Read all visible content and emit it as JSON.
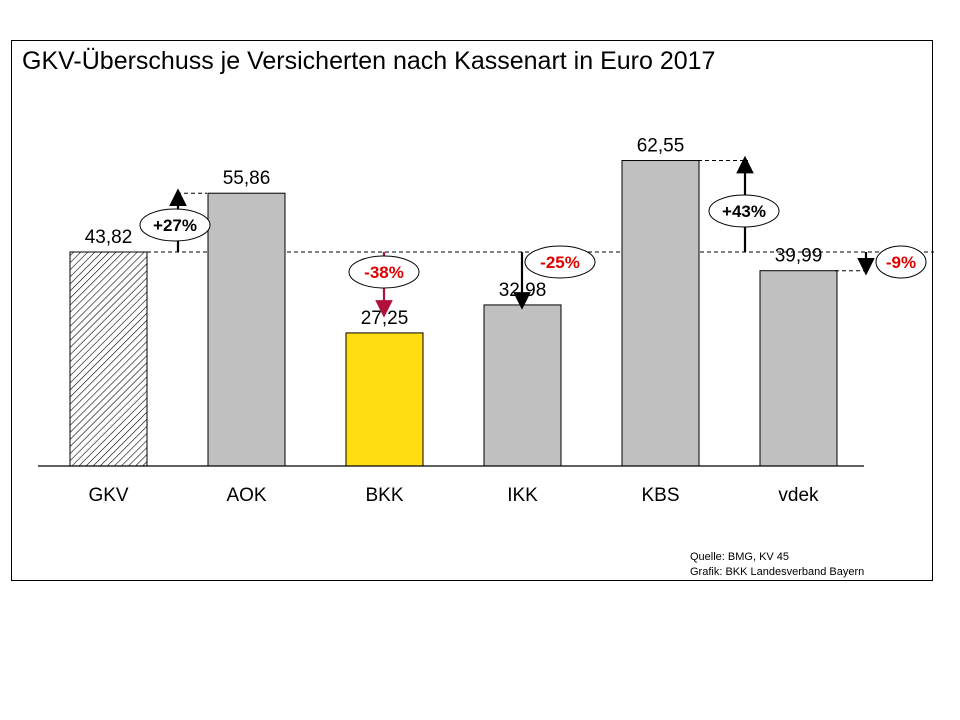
{
  "chart_data": {
    "type": "bar",
    "title": "GKV-Überschuss je Versicherten nach Kassenart in Euro 2017",
    "categories": [
      "GKV",
      "AOK",
      "BKK",
      "IKK",
      "KBS",
      "vdek"
    ],
    "values": [
      43.82,
      55.86,
      27.25,
      32.98,
      62.55,
      39.99
    ],
    "value_labels": [
      "43,82",
      "55,86",
      "27,25",
      "32,98",
      "62,55",
      "39,99"
    ],
    "bar_styles": [
      "hatched",
      "gray",
      "yellow",
      "gray",
      "gray",
      "gray"
    ],
    "colors": {
      "gray": "#c0c0c0",
      "yellow": "#ffdd11",
      "negative": "#e00000",
      "bkk_arrow": "#b0103a"
    },
    "reference": {
      "category": "GKV",
      "value": 43.82
    },
    "deviations": [
      {
        "category": "AOK",
        "label": "+27%",
        "direction": "up",
        "negative": false
      },
      {
        "category": "BKK",
        "label": "-38%",
        "direction": "down",
        "negative": true
      },
      {
        "category": "IKK",
        "label": "-25%",
        "direction": "down",
        "negative": true
      },
      {
        "category": "KBS",
        "label": "+43%",
        "direction": "up",
        "negative": false
      },
      {
        "category": "vdek",
        "label": "-9%",
        "direction": "down",
        "negative": true
      }
    ],
    "xlabel": "",
    "ylabel": "",
    "ylim": [
      0,
      70
    ],
    "grid": false,
    "legend": "none"
  },
  "source": {
    "line1": "Quelle:  BMG, KV 45",
    "line2": "Grafik:  BKK Landesverband  Bayern"
  }
}
